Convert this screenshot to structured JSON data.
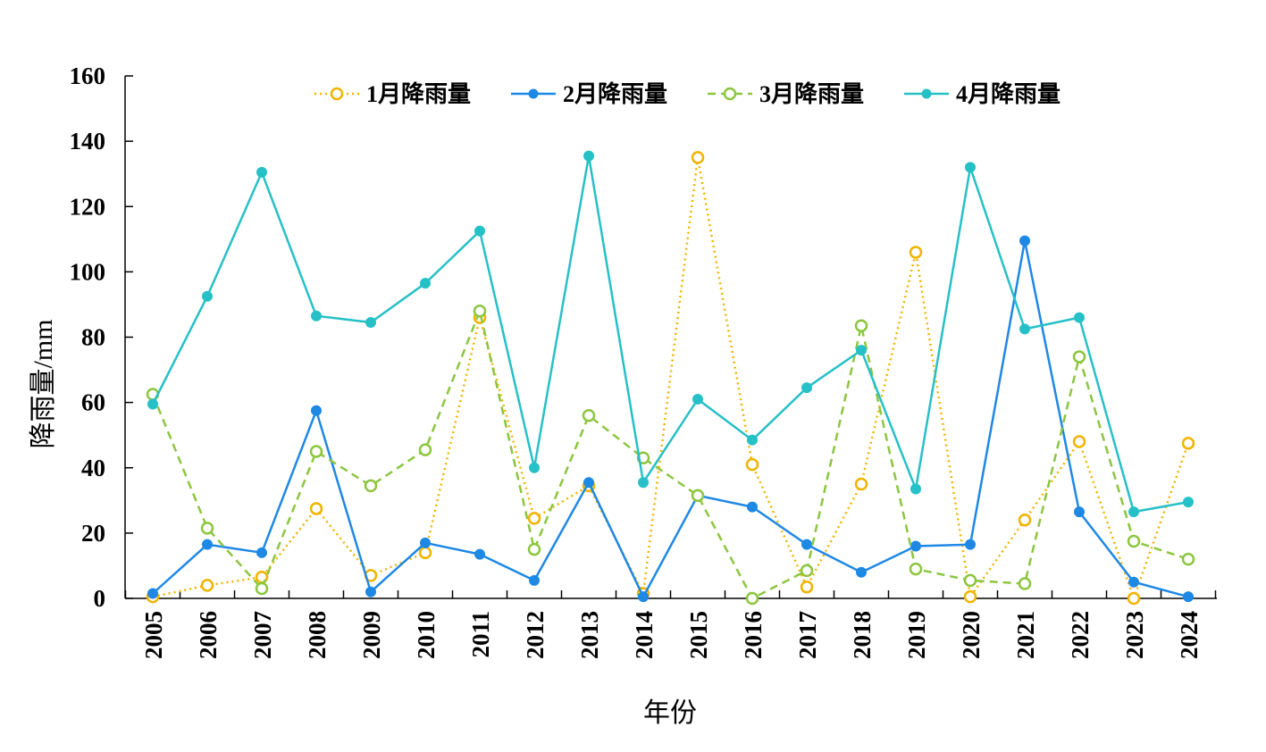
{
  "chart_data": {
    "type": "line",
    "xlabel": "年份",
    "ylabel": "降雨量/mm",
    "ylim": [
      0,
      160
    ],
    "yticks": [
      0,
      20,
      40,
      60,
      80,
      100,
      120,
      140,
      160
    ],
    "grid": false,
    "legend_position": "top",
    "categories": [
      "2005",
      "2006",
      "2007",
      "2008",
      "2009",
      "2010",
      "2011",
      "2012",
      "2013",
      "2014",
      "2015",
      "2016",
      "2017",
      "2018",
      "2019",
      "2020",
      "2021",
      "2022",
      "2023",
      "2024"
    ],
    "series": [
      {
        "name": "1月降雨量",
        "color": "#F0B400",
        "line_style": "dotted",
        "marker": "hollow-circle",
        "values": [
          0.5,
          4,
          6.5,
          27.5,
          7,
          14,
          86,
          24.5,
          34.5,
          1.5,
          135,
          41,
          3.5,
          35,
          106,
          0.5,
          24,
          48,
          0,
          47.5
        ]
      },
      {
        "name": "2月降雨量",
        "color": "#1E88E5",
        "line_style": "solid",
        "marker": "filled-circle",
        "values": [
          1.5,
          16.5,
          14,
          57.5,
          2,
          17,
          13.5,
          5.5,
          35.5,
          0.5,
          31.5,
          28,
          16.5,
          8,
          16,
          16.5,
          109.5,
          26.5,
          5,
          0.5
        ]
      },
      {
        "name": "3月降雨量",
        "color": "#8CC63F",
        "line_style": "dashed",
        "marker": "hollow-circle",
        "values": [
          62.5,
          21.5,
          3,
          45,
          34.5,
          45.5,
          88,
          15,
          56,
          43,
          31.5,
          0,
          8.5,
          83.5,
          9,
          5.5,
          4.5,
          74,
          17.5,
          12
        ]
      },
      {
        "name": "4月降雨量",
        "color": "#26C0C7",
        "line_style": "solid",
        "marker": "filled-circle",
        "values": [
          59.5,
          92.5,
          130.5,
          86.5,
          84.5,
          96.5,
          112.5,
          40,
          135.5,
          35.5,
          61,
          48.5,
          64.5,
          76,
          33.5,
          132,
          82.5,
          86,
          26.5,
          29.5
        ]
      }
    ]
  }
}
